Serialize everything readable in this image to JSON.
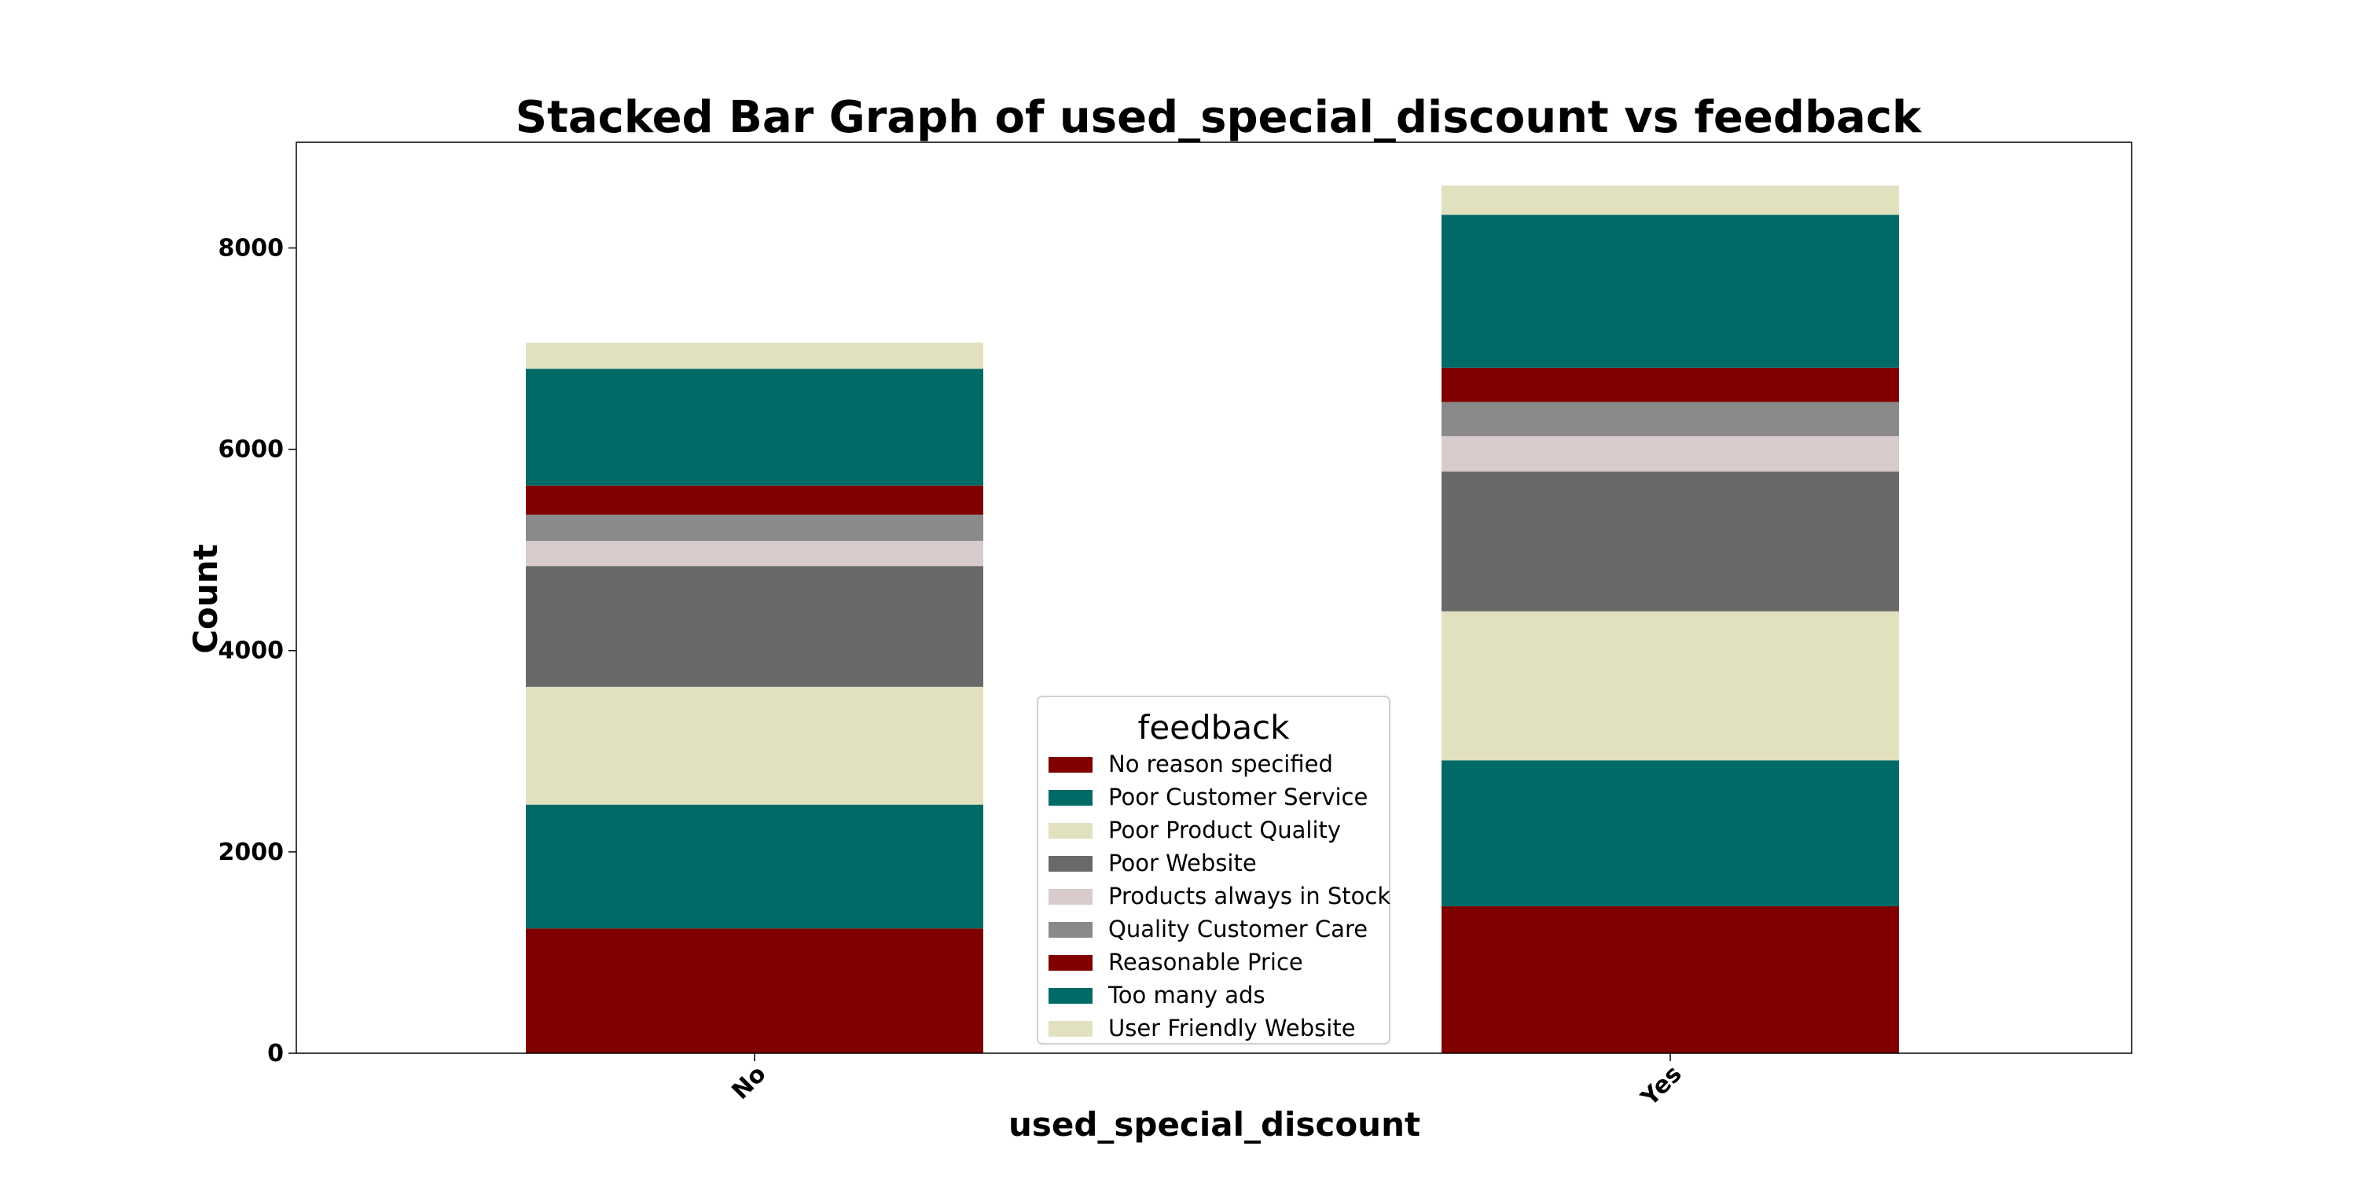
{
  "chart_data": {
    "type": "bar",
    "stacked": true,
    "title": "Stacked Bar Graph of used_special_discount vs feedback",
    "xlabel": "used_special_discount",
    "ylabel": "Count",
    "categories": [
      "No",
      "Yes"
    ],
    "ylim": [
      0,
      9050
    ],
    "yticks": [
      0,
      2000,
      4000,
      6000,
      8000
    ],
    "grid": false,
    "legend": {
      "title": "feedback",
      "placement": "lower-center"
    },
    "series": [
      {
        "name": "No reason specified",
        "color": "#800000",
        "values": [
          1240,
          1460
        ]
      },
      {
        "name": "Poor Customer Service",
        "color": "#006a67",
        "values": [
          1230,
          1450
        ]
      },
      {
        "name": "Poor Product Quality",
        "color": "#e1e1c0",
        "values": [
          1170,
          1480
        ]
      },
      {
        "name": "Poor Website",
        "color": "#696969",
        "values": [
          1200,
          1390
        ]
      },
      {
        "name": "Products always in Stock",
        "color": "#d9cbcb",
        "values": [
          250,
          350
        ]
      },
      {
        "name": "Quality Customer Care",
        "color": "#8a8a8a",
        "values": [
          260,
          340
        ]
      },
      {
        "name": "Reasonable Price",
        "color": "#800000",
        "values": [
          290,
          340
        ]
      },
      {
        "name": "Too many ads",
        "color": "#006a67",
        "values": [
          1160,
          1520
        ]
      },
      {
        "name": "User Friendly Website",
        "color": "#e1e1c0",
        "values": [
          260,
          290
        ]
      }
    ]
  }
}
